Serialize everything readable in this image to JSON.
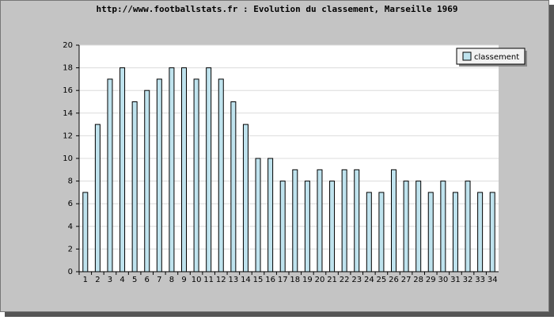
{
  "chart_data": {
    "type": "bar",
    "title": "http://www.footballstats.fr : Evolution du classement, Marseille 1969",
    "categories": [
      "1",
      "2",
      "3",
      "4",
      "5",
      "6",
      "7",
      "8",
      "9",
      "10",
      "11",
      "12",
      "13",
      "14",
      "15",
      "16",
      "17",
      "18",
      "19",
      "20",
      "21",
      "22",
      "23",
      "24",
      "25",
      "26",
      "27",
      "28",
      "29",
      "30",
      "31",
      "32",
      "33",
      "34"
    ],
    "series": [
      {
        "name": "classement",
        "color": "#bfe3ee",
        "values": [
          7,
          13,
          17,
          18,
          15,
          16,
          17,
          18,
          18,
          17,
          18,
          17,
          15,
          13,
          10,
          10,
          8,
          9,
          8,
          9,
          8,
          9,
          9,
          7,
          7,
          9,
          8,
          8,
          7,
          8,
          7,
          8,
          7,
          7
        ]
      }
    ],
    "ylim": [
      0,
      20
    ],
    "yticks": [
      0,
      2,
      4,
      6,
      8,
      10,
      12,
      14,
      16,
      18,
      20
    ],
    "grid": true,
    "legend": "top-right"
  }
}
